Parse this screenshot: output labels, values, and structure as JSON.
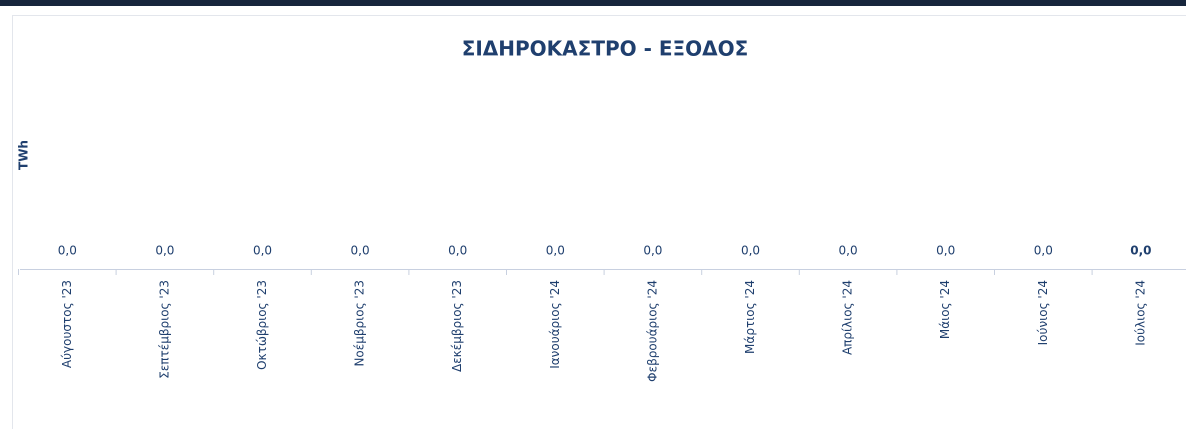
{
  "chart_data": {
    "type": "bar",
    "title": "ΣΙΔΗΡΟΚΑΣΤΡΟ - ΕΞΟΔΟΣ",
    "y_label": "TWh",
    "categories": [
      "Αύγουστος '23",
      "Σεπτέμβριος '23",
      "Οκτώβριος '23",
      "Νοέμβριος '23",
      "Δεκέμβριος '23",
      "Ιανουάριος '24",
      "Φεβρουάριος '24",
      "Μάρτιος '24",
      "Απρίλιος '24",
      "Μάιος '24",
      "Ιούνιος '24",
      "Ιούλιος '24"
    ],
    "values": [
      0,
      0,
      0,
      0,
      0,
      0,
      0,
      0,
      0,
      0,
      0,
      0
    ],
    "value_labels": [
      "0,0",
      "0,0",
      "0,0",
      "0,0",
      "0,0",
      "0,0",
      "0,0",
      "0,0",
      "0,0",
      "0,0",
      "0,0",
      "0,0"
    ],
    "color": "#4a6fd6"
  }
}
